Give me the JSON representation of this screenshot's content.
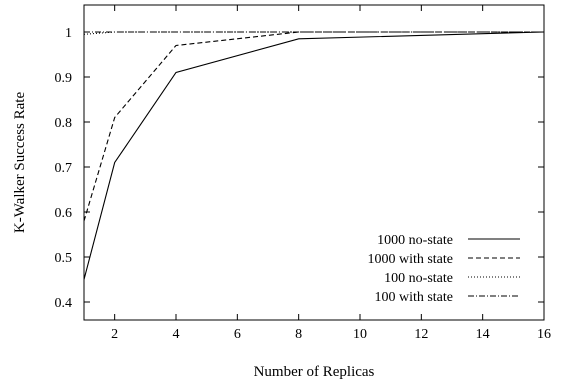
{
  "chart_data": {
    "type": "line",
    "title": "",
    "xlabel": "Number of Replicas",
    "ylabel": "K-Walker Success Rate",
    "xlim": [
      1,
      16
    ],
    "ylim": [
      0.36,
      1.06
    ],
    "xticks": [
      2,
      4,
      6,
      8,
      10,
      12,
      14,
      16
    ],
    "xtick_labels": [
      "2",
      "4",
      "6",
      "8",
      "10",
      "12",
      "14",
      "16"
    ],
    "yticks": [
      0.4,
      0.5,
      0.6,
      0.7,
      0.8,
      0.9,
      1.0
    ],
    "ytick_labels": [
      "0.4",
      "0.5",
      "0.6",
      "0.7",
      "0.8",
      "0.9",
      "1"
    ],
    "grid": false,
    "legend_position": "bottom-right",
    "series": [
      {
        "name": "1000 no-state",
        "style": "solid",
        "x": [
          1,
          2,
          4,
          8,
          16
        ],
        "y": [
          0.45,
          0.71,
          0.91,
          0.985,
          1.0
        ]
      },
      {
        "name": "1000 with state",
        "style": "dashed",
        "x": [
          1,
          2,
          4,
          8,
          16
        ],
        "y": [
          0.58,
          0.81,
          0.97,
          1.0,
          1.0
        ]
      },
      {
        "name": "100 no-state",
        "style": "dotted",
        "x": [
          1,
          2,
          4,
          8,
          16
        ],
        "y": [
          0.995,
          1.0,
          1.0,
          1.0,
          1.0
        ]
      },
      {
        "name": "100 with state",
        "style": "dashdot",
        "x": [
          1,
          2,
          4,
          8,
          16
        ],
        "y": [
          1.0,
          1.0,
          1.0,
          1.0,
          1.0
        ]
      }
    ]
  }
}
